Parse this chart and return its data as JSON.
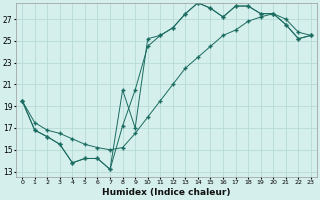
{
  "xlabel": "Humidex (Indice chaleur)",
  "background_color": "#d5efed",
  "grid_color": "#b8dbd8",
  "line_color": "#1a6b60",
  "xlim": [
    -0.5,
    23.5
  ],
  "ylim": [
    12.5,
    28.5
  ],
  "xticks": [
    0,
    1,
    2,
    3,
    4,
    5,
    6,
    7,
    8,
    9,
    10,
    11,
    12,
    13,
    14,
    15,
    16,
    17,
    18,
    19,
    20,
    21,
    22,
    23
  ],
  "yticks": [
    13,
    15,
    17,
    19,
    21,
    23,
    25,
    27
  ],
  "series1_x": [
    0,
    1,
    2,
    3,
    4,
    5,
    6,
    7,
    8,
    9,
    10,
    11,
    12,
    13,
    14,
    15,
    16,
    17,
    18,
    19,
    20,
    21,
    22,
    23
  ],
  "series1_y": [
    19.5,
    16.8,
    16.2,
    15.5,
    13.8,
    14.2,
    14.2,
    13.2,
    20.5,
    17.0,
    25.2,
    25.5,
    26.2,
    27.5,
    28.5,
    28.0,
    27.2,
    28.2,
    28.2,
    27.5,
    27.5,
    26.5,
    25.2,
    25.5
  ],
  "series2_x": [
    0,
    1,
    2,
    3,
    4,
    5,
    6,
    7,
    8,
    9,
    10,
    11,
    12,
    13,
    14,
    15,
    16,
    17,
    18,
    19,
    20,
    21,
    22,
    23
  ],
  "series2_y": [
    19.5,
    16.8,
    16.2,
    15.5,
    13.8,
    14.2,
    14.2,
    13.2,
    17.2,
    20.5,
    24.5,
    25.5,
    26.2,
    27.5,
    28.5,
    28.0,
    27.2,
    28.2,
    28.2,
    27.5,
    27.5,
    26.5,
    25.2,
    25.5
  ],
  "series3_x": [
    0,
    1,
    2,
    3,
    4,
    5,
    6,
    7,
    8,
    9,
    10,
    11,
    12,
    13,
    14,
    15,
    16,
    17,
    18,
    19,
    20,
    21,
    22,
    23
  ],
  "series3_y": [
    19.5,
    17.5,
    16.8,
    16.5,
    16.0,
    15.5,
    15.2,
    15.0,
    15.2,
    16.5,
    18.0,
    19.5,
    21.0,
    22.5,
    23.5,
    24.5,
    25.5,
    26.0,
    26.8,
    27.2,
    27.5,
    27.0,
    25.8,
    25.5
  ]
}
